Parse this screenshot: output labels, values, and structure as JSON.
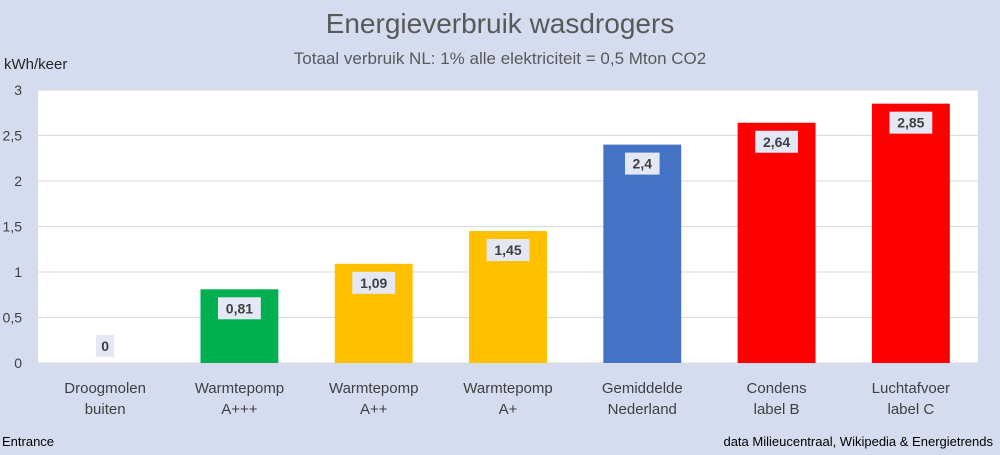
{
  "chart_data": {
    "type": "bar",
    "title": "Energieverbruik wasdrogers",
    "subtitle": "Totaal verbruik NL: 1% alle elektriciteit = 0,5 Mton CO2",
    "ylabel": "kWh/keer",
    "xlabel": "",
    "ylim": [
      0,
      3
    ],
    "yticks": [
      "0",
      "0,5",
      "1",
      "1,5",
      "2",
      "2,5",
      "3"
    ],
    "grid": true,
    "categories": [
      [
        "Droogmolen",
        "buiten"
      ],
      [
        "Warmtepomp",
        "A+++"
      ],
      [
        "Warmtepomp",
        "A++"
      ],
      [
        "Warmtepomp",
        "A+"
      ],
      [
        "Gemiddelde",
        "Nederland"
      ],
      [
        "Condens",
        "label B"
      ],
      [
        "Luchtafvoer",
        "label C"
      ]
    ],
    "values": [
      0,
      0.81,
      1.09,
      1.45,
      2.4,
      2.64,
      2.85
    ],
    "value_labels": [
      "0",
      "0,81",
      "1,09",
      "1,45",
      "2,4",
      "2,64",
      "2,85"
    ],
    "colors": [
      "#00b050",
      "#00b050",
      "#ffc000",
      "#ffc000",
      "#4472c4",
      "#ff0000",
      "#ff0000"
    ]
  },
  "footer": {
    "left": "Entrance",
    "right": "data Milieucentraal, Wikipedia  & Energietrends"
  },
  "colors": {
    "background": "#d6dcef",
    "plot_area": "#ffffff",
    "gridline": "#d9d9d9"
  }
}
